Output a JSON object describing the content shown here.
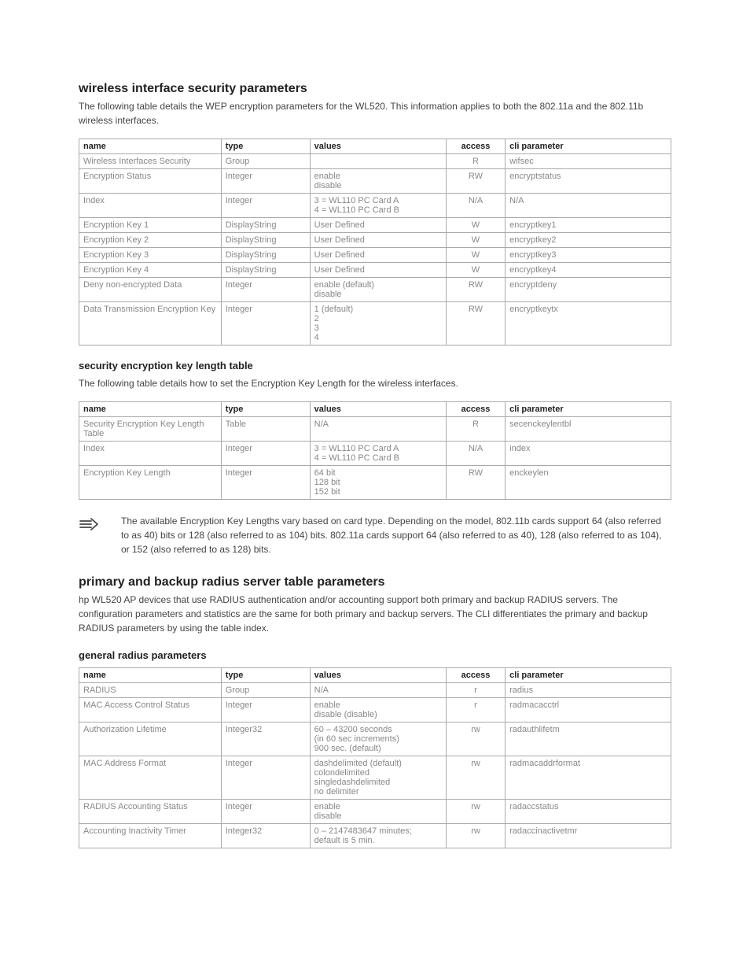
{
  "section1": {
    "heading": "wireless interface security parameters",
    "intro": "The following table details the WEP encryption parameters for the WL520. This information applies to both the 802.11a and the 802.11b wireless interfaces."
  },
  "table1": {
    "headers": {
      "name": "name",
      "type": "type",
      "values": "values",
      "access": "access",
      "cli": "cli parameter"
    },
    "rows": [
      {
        "name": "Wireless Interfaces Security",
        "type": "Group",
        "values": "",
        "access": "R",
        "cli": "wifsec"
      },
      {
        "name": "Encryption Status",
        "type": "Integer",
        "values": "enable\ndisable",
        "access": "RW",
        "cli": "encryptstatus"
      },
      {
        "name": "Index",
        "type": "Integer",
        "values": "3 = WL110 PC Card A\n4 = WL110 PC Card B",
        "access": "N/A",
        "cli": "N/A"
      },
      {
        "name": "Encryption Key 1",
        "type": "DisplayString",
        "values": "User Defined",
        "access": "W",
        "cli": "encryptkey1"
      },
      {
        "name": "Encryption Key 2",
        "type": "DisplayString",
        "values": "User Defined",
        "access": "W",
        "cli": "encryptkey2"
      },
      {
        "name": "Encryption Key 3",
        "type": "DisplayString",
        "values": "User Defined",
        "access": "W",
        "cli": "encryptkey3"
      },
      {
        "name": "Encryption Key 4",
        "type": "DisplayString",
        "values": "User Defined",
        "access": "W",
        "cli": "encryptkey4"
      },
      {
        "name": "Deny non-encrypted Data",
        "type": "Integer",
        "values": "enable (default)\ndisable",
        "access": "RW",
        "cli": "encryptdeny"
      },
      {
        "name": "Data Transmission Encryption Key",
        "type": "Integer",
        "values": "1 (default)\n2\n3\n4",
        "access": "RW",
        "cli": "encryptkeytx"
      }
    ]
  },
  "section2": {
    "heading": "security encryption key length table",
    "intro": "The following table details how to set the Encryption Key Length for the wireless interfaces."
  },
  "table2": {
    "headers": {
      "name": "name",
      "type": "type",
      "values": "values",
      "access": "access",
      "cli": "cli parameter"
    },
    "rows": [
      {
        "name": "Security Encryption Key Length Table",
        "type": "Table",
        "values": "N/A",
        "access": "R",
        "cli": "secenckeylentbl"
      },
      {
        "name": "Index",
        "type": "Integer",
        "values": "3 = WL110 PC Card A\n4 = WL110 PC Card B",
        "access": "N/A",
        "cli": "index"
      },
      {
        "name": "Encryption Key Length",
        "type": "Integer",
        "values": "64 bit\n128 bit\n152 bit",
        "access": "RW",
        "cli": "enckeylen"
      }
    ]
  },
  "note": {
    "text": "The available Encryption Key Lengths vary based on card type. Depending on the model, 802.11b cards support 64 (also referred to as 40) bits or 128 (also referred to as 104) bits. 802.11a cards support 64 (also referred to as 40), 128 (also referred to as 104), or 152 (also referred to as 128) bits."
  },
  "section3": {
    "heading": "primary and backup radius server table parameters",
    "intro": "hp WL520 AP devices that use RADIUS authentication and/or accounting support both primary and backup RADIUS servers. The configuration parameters and statistics are the same for both primary and backup servers. The CLI differentiates the primary and backup RADIUS parameters by using the table index."
  },
  "section4": {
    "heading": "general radius parameters"
  },
  "table3": {
    "headers": {
      "name": "name",
      "type": "type",
      "values": "values",
      "access": "access",
      "cli": "cli parameter"
    },
    "rows": [
      {
        "name": "RADIUS",
        "type": "Group",
        "values": "N/A",
        "access": "r",
        "cli": "radius"
      },
      {
        "name": "MAC Access Control Status",
        "type": "Integer",
        "values": "enable\ndisable (disable)",
        "access": "r",
        "cli": "radmacacctrl"
      },
      {
        "name": "Authorization Lifetime",
        "type": "Integer32",
        "values": "60 – 43200 seconds\n(in 60 sec increments)\n900 sec. (default)",
        "access": "rw",
        "cli": "radauthlifetm"
      },
      {
        "name": "MAC Address Format",
        "type": "Integer",
        "values": "dashdelimited (default)\ncolondelimited\nsingledashdelimited\nno delimiter",
        "access": "rw",
        "cli": "radmacaddrformat"
      },
      {
        "name": "RADIUS Accounting Status",
        "type": "Integer",
        "values": "enable\ndisable",
        "access": "rw",
        "cli": "radaccstatus"
      },
      {
        "name": "Accounting Inactivity Timer",
        "type": "Integer32",
        "values": "0 – 2147483647 minutes;\ndefault is 5 min.",
        "access": "rw",
        "cli": "radaccinactivetmr"
      }
    ]
  }
}
